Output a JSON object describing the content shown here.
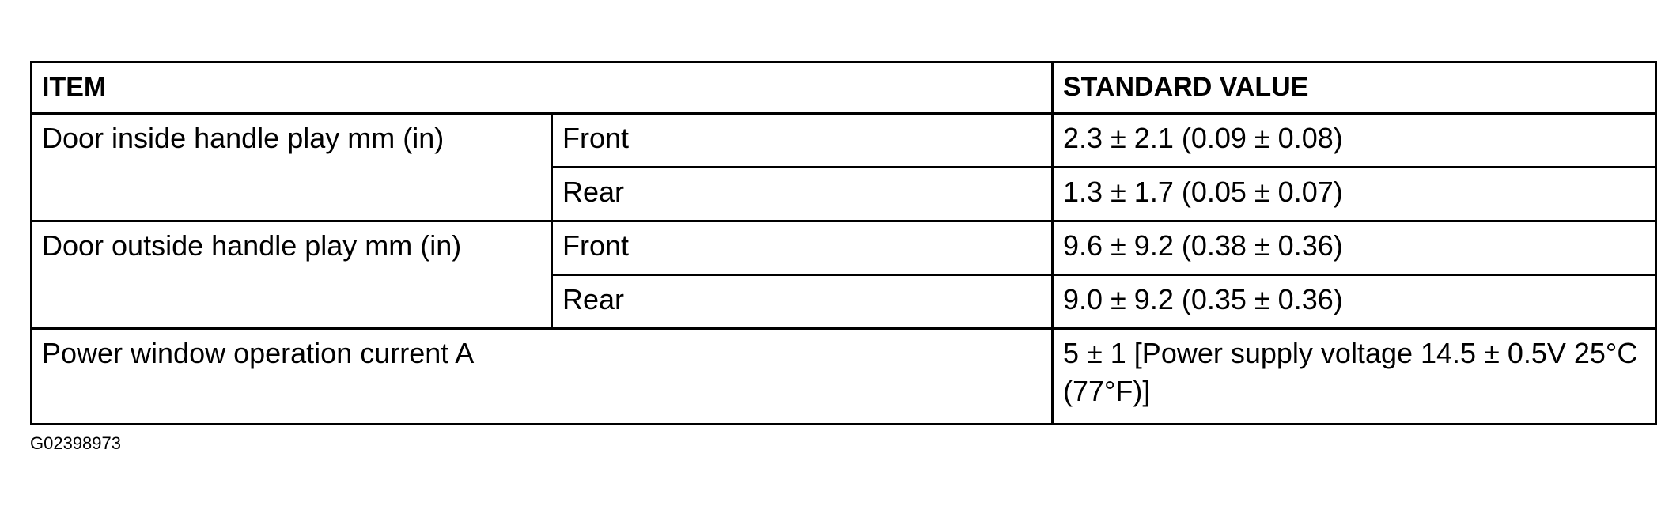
{
  "table": {
    "headers": {
      "item": "ITEM",
      "value": "STANDARD VALUE"
    },
    "rows": [
      {
        "item": "Door inside handle play mm (in)",
        "sub": [
          {
            "position": "Front",
            "value": "2.3 ± 2.1 (0.09 ± 0.08)"
          },
          {
            "position": "Rear",
            "value": "1.3 ± 1.7 (0.05 ± 0.07)"
          }
        ]
      },
      {
        "item": "Door outside handle play mm (in)",
        "sub": [
          {
            "position": "Front",
            "value": "9.6 ± 9.2 (0.38 ± 0.36)"
          },
          {
            "position": "Rear",
            "value": "9.0 ± 9.2 (0.35 ± 0.36)"
          }
        ]
      },
      {
        "item": "Power window operation current A",
        "value": "5 ± 1 [Power supply voltage 14.5 ± 0.5V 25°C (77°F)]"
      }
    ]
  },
  "figure_code": "G02398973"
}
